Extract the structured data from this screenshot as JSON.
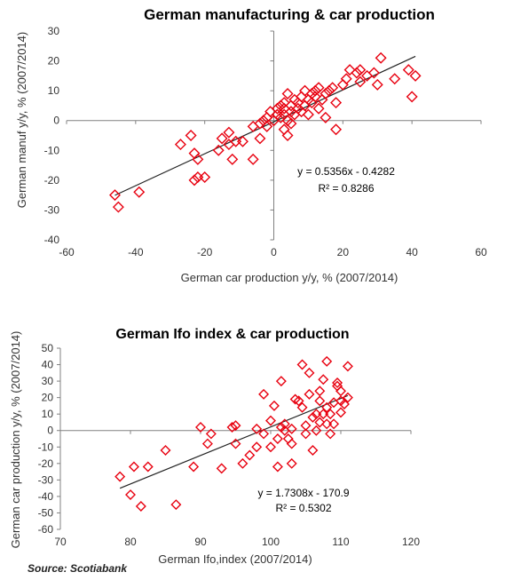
{
  "colors": {
    "marker": "#e8000f",
    "trendline": "#222222",
    "axis": "#808080"
  },
  "source": "Source: Scotiabank",
  "chart_data": [
    {
      "type": "scatter",
      "title": "German manufacturing & car production",
      "xlabel": "German car production y/y, % (2007/2014)",
      "ylabel": "German manuf y/y, % (2007/2014)",
      "xlim": [
        -60,
        60
      ],
      "ylim": [
        -40,
        30
      ],
      "x_ticks": [
        "-60",
        "-40",
        "-20",
        "0",
        "20",
        "40",
        "60"
      ],
      "y_ticks": [
        "-40",
        "-30",
        "-20",
        "-10",
        "0",
        "10",
        "20",
        "30"
      ],
      "grid": false,
      "marker": "diamond",
      "trendline": {
        "slope": 0.5356,
        "intercept": -0.4282
      },
      "equation": "y = 0.5356x - 0.4282",
      "r_squared": "R² = 0.8286",
      "points": [
        [
          -46,
          -25
        ],
        [
          -45,
          -29
        ],
        [
          -39,
          -24
        ],
        [
          -27,
          -8
        ],
        [
          -24,
          -5
        ],
        [
          -23,
          -11
        ],
        [
          -22,
          -13
        ],
        [
          -23,
          -20
        ],
        [
          -22,
          -19
        ],
        [
          -20,
          -19
        ],
        [
          -16,
          -10
        ],
        [
          -15,
          -6
        ],
        [
          -13,
          -4
        ],
        [
          -13,
          -8
        ],
        [
          -11,
          -7
        ],
        [
          -12,
          -13
        ],
        [
          -9,
          -7
        ],
        [
          -6,
          -13
        ],
        [
          -4,
          -6
        ],
        [
          -6,
          -2
        ],
        [
          -4,
          -1
        ],
        [
          -3,
          0
        ],
        [
          -2,
          1
        ],
        [
          -1,
          3
        ],
        [
          -2,
          -2
        ],
        [
          0,
          0
        ],
        [
          1,
          2
        ],
        [
          1,
          4
        ],
        [
          2,
          1
        ],
        [
          2,
          5
        ],
        [
          3,
          2
        ],
        [
          3,
          4
        ],
        [
          3,
          6
        ],
        [
          4,
          0
        ],
        [
          5,
          3
        ],
        [
          5,
          5
        ],
        [
          5,
          -1
        ],
        [
          6,
          7
        ],
        [
          6,
          2
        ],
        [
          4,
          9
        ],
        [
          7,
          4
        ],
        [
          7,
          6
        ],
        [
          8,
          3
        ],
        [
          8,
          8
        ],
        [
          9,
          5
        ],
        [
          9,
          10
        ],
        [
          10,
          2
        ],
        [
          10,
          7
        ],
        [
          11,
          9
        ],
        [
          11,
          6
        ],
        [
          12,
          8
        ],
        [
          12,
          10
        ],
        [
          13,
          4
        ],
        [
          13,
          11
        ],
        [
          14,
          7
        ],
        [
          15,
          9
        ],
        [
          16,
          10
        ],
        [
          17,
          11
        ],
        [
          15,
          1
        ],
        [
          18,
          6
        ],
        [
          18,
          -3
        ],
        [
          3,
          -3
        ],
        [
          4,
          -5
        ],
        [
          20,
          12
        ],
        [
          21,
          14
        ],
        [
          22,
          17
        ],
        [
          24,
          16
        ],
        [
          25,
          13
        ],
        [
          25,
          17
        ],
        [
          27,
          15
        ],
        [
          29,
          16
        ],
        [
          30,
          12
        ],
        [
          31,
          21
        ],
        [
          35,
          14
        ],
        [
          39,
          17
        ],
        [
          40,
          8
        ],
        [
          41,
          15
        ]
      ]
    },
    {
      "type": "scatter",
      "title": "German Ifo index & car production",
      "xlabel": "German Ifo,index (2007/2014)",
      "ylabel": "German car production y/y, % (2007/2014)",
      "xlim": [
        70,
        120
      ],
      "ylim": [
        -60,
        50
      ],
      "x_ticks": [
        "70",
        "80",
        "90",
        "100",
        "110",
        "120"
      ],
      "y_ticks": [
        "-60",
        "-50",
        "-40",
        "-30",
        "-20",
        "-10",
        "0",
        "10",
        "20",
        "30",
        "40",
        "50"
      ],
      "grid": false,
      "marker": "diamond",
      "trendline": {
        "slope": 1.7308,
        "intercept": -170.9
      },
      "equation": "y = 1.7308x - 170.9",
      "r_squared": "R² = 0.5302",
      "points": [
        [
          78.5,
          -28
        ],
        [
          80,
          -39
        ],
        [
          80.5,
          -22
        ],
        [
          81.5,
          -46
        ],
        [
          82.5,
          -22
        ],
        [
          85,
          -12
        ],
        [
          86.5,
          -45
        ],
        [
          89,
          -22
        ],
        [
          90,
          2
        ],
        [
          91,
          -8
        ],
        [
          91.5,
          -2
        ],
        [
          93,
          -23
        ],
        [
          94.5,
          2
        ],
        [
          95,
          -8
        ],
        [
          95,
          3
        ],
        [
          96,
          -20
        ],
        [
          97,
          -15
        ],
        [
          98,
          -10
        ],
        [
          98,
          1
        ],
        [
          99,
          -2
        ],
        [
          99,
          22
        ],
        [
          100,
          6
        ],
        [
          100,
          -10
        ],
        [
          100.5,
          15
        ],
        [
          101,
          -5
        ],
        [
          101,
          -22
        ],
        [
          101.5,
          2
        ],
        [
          101.5,
          30
        ],
        [
          102,
          0
        ],
        [
          102,
          4
        ],
        [
          102.5,
          -5
        ],
        [
          103,
          -20
        ],
        [
          103,
          -8
        ],
        [
          103,
          1
        ],
        [
          103.5,
          19
        ],
        [
          104,
          18
        ],
        [
          104.5,
          40
        ],
        [
          104.5,
          14
        ],
        [
          105,
          -2
        ],
        [
          105,
          3
        ],
        [
          105.5,
          22
        ],
        [
          105.5,
          35
        ],
        [
          106,
          8
        ],
        [
          106,
          -12
        ],
        [
          106.5,
          10
        ],
        [
          106.5,
          0
        ],
        [
          107,
          18
        ],
        [
          107,
          24
        ],
        [
          107,
          5
        ],
        [
          107.5,
          10
        ],
        [
          107.5,
          31
        ],
        [
          108,
          4
        ],
        [
          108,
          14
        ],
        [
          108,
          42
        ],
        [
          108.5,
          10
        ],
        [
          108.5,
          -2
        ],
        [
          109,
          17
        ],
        [
          109,
          4
        ],
        [
          109.5,
          29
        ],
        [
          109.5,
          27
        ],
        [
          110,
          24
        ],
        [
          110,
          18
        ],
        [
          110,
          11
        ],
        [
          110.5,
          16
        ],
        [
          111,
          39
        ],
        [
          111,
          20
        ]
      ]
    }
  ]
}
